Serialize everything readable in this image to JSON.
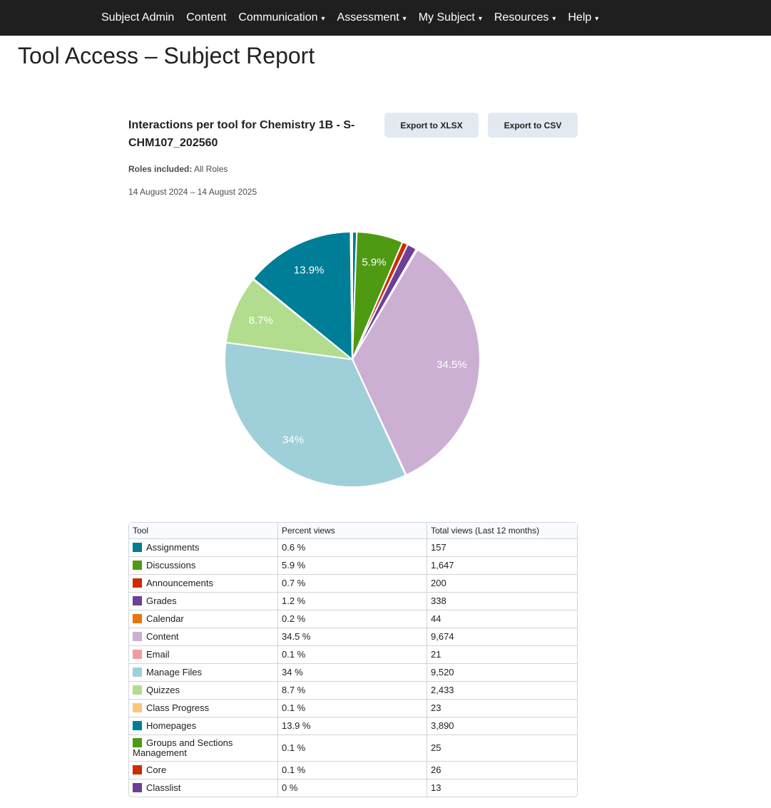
{
  "nav": [
    {
      "label": "Subject Admin",
      "dropdown": false
    },
    {
      "label": "Content",
      "dropdown": false
    },
    {
      "label": "Communication",
      "dropdown": true
    },
    {
      "label": "Assessment",
      "dropdown": true
    },
    {
      "label": "My Subject",
      "dropdown": true
    },
    {
      "label": "Resources",
      "dropdown": true
    },
    {
      "label": "Help",
      "dropdown": true
    }
  ],
  "page_title": "Tool Access – Subject Report",
  "report": {
    "title": "Interactions per tool for Chemistry 1B - S-CHM107_202560",
    "roles_label": "Roles included:",
    "roles_value": "All Roles",
    "date_range": "14 August 2024 – 14 August 2025",
    "export_xlsx": "Export to XLSX",
    "export_csv": "Export to CSV"
  },
  "table": {
    "headers": [
      "Tool",
      "Percent views",
      "Total views (Last 12 months)"
    ]
  },
  "chart_data": {
    "type": "pie",
    "slices": [
      {
        "label": "Assignments",
        "percent": "0.6 %",
        "views": 157,
        "views_text": "157",
        "color": "#007d8f",
        "show_label": false
      },
      {
        "label": "Discussions",
        "percent": "5.9 %",
        "views": 1647,
        "views_text": "1,647",
        "color": "#4e9a13",
        "show_label": true,
        "slice_label": "5.9%"
      },
      {
        "label": "Announcements",
        "percent": "0.7 %",
        "views": 200,
        "views_text": "200",
        "color": "#cd2c00",
        "show_label": false
      },
      {
        "label": "Grades",
        "percent": "1.2 %",
        "views": 338,
        "views_text": "338",
        "color": "#6d3f99",
        "show_label": false
      },
      {
        "label": "Calendar",
        "percent": "0.2 %",
        "views": 44,
        "views_text": "44",
        "color": "#e87511",
        "show_label": false
      },
      {
        "label": "Content",
        "percent": "34.5 %",
        "views": 9674,
        "views_text": "9,674",
        "color": "#cbb0d4",
        "show_label": true,
        "slice_label": "34.5%"
      },
      {
        "label": "Email",
        "percent": "0.1 %",
        "views": 21,
        "views_text": "21",
        "color": "#f39b9b",
        "show_label": false
      },
      {
        "label": "Manage Files",
        "percent": "34 %",
        "views": 9520,
        "views_text": "9,520",
        "color": "#9fd0d9",
        "show_label": true,
        "slice_label": "34%"
      },
      {
        "label": "Quizzes",
        "percent": "8.7 %",
        "views": 2433,
        "views_text": "2,433",
        "color": "#b3dd8e",
        "show_label": true,
        "slice_label": "8.7%"
      },
      {
        "label": "Class Progress",
        "percent": "0.1 %",
        "views": 23,
        "views_text": "23",
        "color": "#fbc57d",
        "show_label": false
      },
      {
        "label": "Homepages",
        "percent": "13.9 %",
        "views": 3890,
        "views_text": "3,890",
        "color": "#007d97",
        "show_label": true,
        "slice_label": "13.9%"
      },
      {
        "label": "Groups and Sections Management",
        "percent": "0.1 %",
        "views": 25,
        "views_text": "25",
        "color": "#4e9a13",
        "show_label": false
      },
      {
        "label": "Core",
        "percent": "0.1 %",
        "views": 26,
        "views_text": "26",
        "color": "#cd2c00",
        "show_label": false
      },
      {
        "label": "Classlist",
        "percent": "0 %",
        "views": 13,
        "views_text": "13",
        "color": "#6d3f99",
        "show_label": false
      }
    ]
  }
}
